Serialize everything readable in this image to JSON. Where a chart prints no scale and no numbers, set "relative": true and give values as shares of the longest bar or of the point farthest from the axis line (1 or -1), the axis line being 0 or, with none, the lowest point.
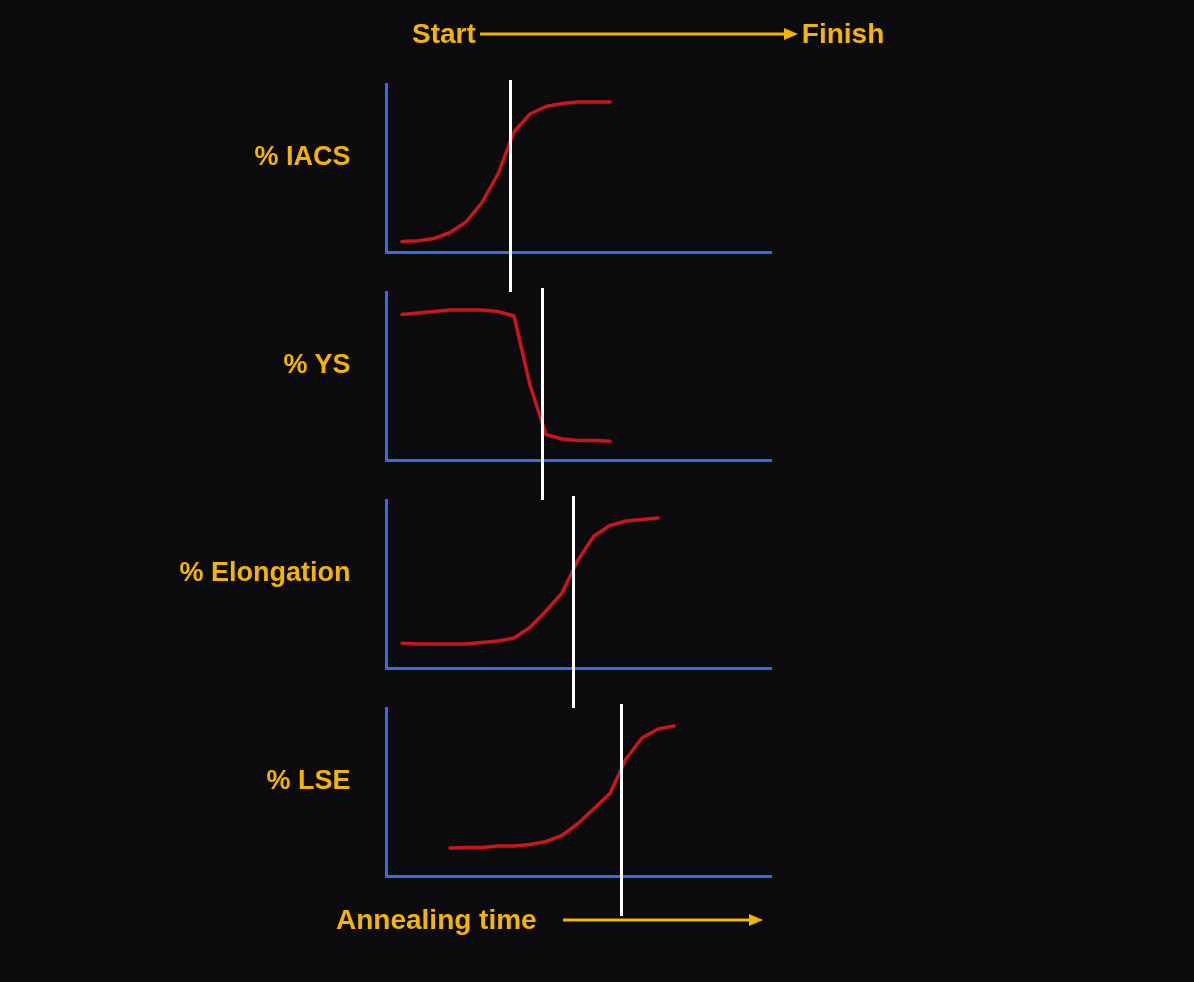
{
  "chart_data": [
    {
      "type": "line",
      "relative": true,
      "ylabel": "% IACS",
      "annotations": [
        "Start",
        "Finish"
      ],
      "categories": [
        null,
        null,
        null,
        null,
        null,
        null,
        null,
        null,
        null,
        null,
        null,
        null,
        null,
        null,
        null,
        null,
        null,
        null,
        null,
        null,
        null,
        null,
        null,
        null,
        null
      ],
      "series": [
        {
          "color": "#c8161c",
          "values": [
            null,
            0.07,
            0.075,
            0.09,
            0.13,
            0.2,
            0.33,
            0.52,
            0.8,
            0.92,
            0.97,
            0.99,
            1,
            1,
            1,
            null,
            null,
            null,
            null,
            null,
            null,
            null,
            null,
            null,
            null
          ]
        }
      ]
    },
    {
      "type": "line",
      "relative": true,
      "ylabel": "% YS",
      "categories": [
        null,
        null,
        null,
        null,
        null,
        null,
        null,
        null,
        null,
        null,
        null,
        null,
        null,
        null,
        null,
        null,
        null,
        null,
        null,
        null,
        null,
        null,
        null,
        null,
        null
      ],
      "series": [
        {
          "color": "#c8161c",
          "values": [
            null,
            0.97,
            0.98,
            0.99,
            1,
            1,
            1,
            0.99,
            0.96,
            0.5,
            0.17,
            0.14,
            0.13,
            0.13,
            0.125,
            null,
            null,
            null,
            null,
            null,
            null,
            null,
            null,
            null,
            null
          ]
        }
      ]
    },
    {
      "type": "line",
      "relative": true,
      "ylabel": "% Elongation",
      "categories": [
        null,
        null,
        null,
        null,
        null,
        null,
        null,
        null,
        null,
        null,
        null,
        null,
        null,
        null,
        null,
        null,
        null,
        null,
        null,
        null,
        null,
        null,
        null,
        null,
        null
      ],
      "series": [
        {
          "color": "#c8161c",
          "values": [
            null,
            0.165,
            0.16,
            0.16,
            0.16,
            0.16,
            0.17,
            0.18,
            0.2,
            0.27,
            0.38,
            0.5,
            0.72,
            0.88,
            0.95,
            0.98,
            0.99,
            1,
            null,
            null,
            null,
            null,
            null,
            null,
            null
          ]
        }
      ]
    },
    {
      "type": "line",
      "relative": true,
      "ylabel": "% LSE",
      "xlabel": "Annealing time",
      "categories": [
        null,
        null,
        null,
        null,
        null,
        null,
        null,
        null,
        null,
        null,
        null,
        null,
        null,
        null,
        null,
        null,
        null,
        null,
        null,
        null,
        null,
        null,
        null,
        null,
        null
      ],
      "series": [
        {
          "color": "#c8161c",
          "values": [
            null,
            null,
            null,
            null,
            0.187,
            0.19,
            0.19,
            0.2,
            0.2,
            0.21,
            0.23,
            0.27,
            0.35,
            0.45,
            0.55,
            0.78,
            0.92,
            0.98,
            1,
            null,
            null,
            null,
            null,
            null,
            null
          ]
        }
      ]
    }
  ]
}
